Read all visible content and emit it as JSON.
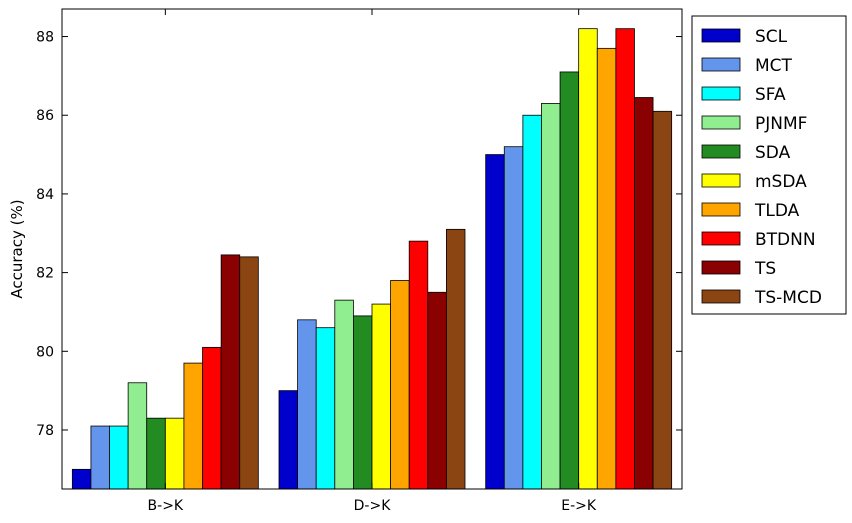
{
  "chart_data": {
    "type": "bar",
    "ylabel": "Accuracy (%)",
    "xlabel": "",
    "ylim": [
      76.5,
      88.7
    ],
    "yticks": [
      78,
      80,
      82,
      84,
      86,
      88
    ],
    "categories": [
      "B->K",
      "D->K",
      "E->K"
    ],
    "grid": false,
    "legend_position": "right-outside",
    "series": [
      {
        "name": "SCL",
        "color": "#0000cd",
        "values": [
          77.0,
          79.0,
          85.0
        ]
      },
      {
        "name": "MCT",
        "color": "#6495ed",
        "values": [
          78.1,
          80.8,
          85.2
        ]
      },
      {
        "name": "SFA",
        "color": "#00ffff",
        "values": [
          78.1,
          80.6,
          86.0
        ]
      },
      {
        "name": "PJNMF",
        "color": "#90ee90",
        "values": [
          79.2,
          81.3,
          86.3
        ]
      },
      {
        "name": "SDA",
        "color": "#228b22",
        "values": [
          78.3,
          80.9,
          87.1
        ]
      },
      {
        "name": "mSDA",
        "color": "#ffff00",
        "values": [
          78.3,
          81.2,
          88.2
        ]
      },
      {
        "name": "TLDA",
        "color": "#ffa500",
        "values": [
          79.7,
          81.8,
          87.7
        ]
      },
      {
        "name": "BTDNN",
        "color": "#ff0000",
        "values": [
          80.1,
          82.8,
          88.2
        ]
      },
      {
        "name": "TS",
        "color": "#8b0000",
        "values": [
          82.45,
          81.5,
          86.45
        ]
      },
      {
        "name": "TS-MCD",
        "color": "#8b4513",
        "values": [
          82.4,
          83.1,
          86.1
        ]
      }
    ]
  }
}
